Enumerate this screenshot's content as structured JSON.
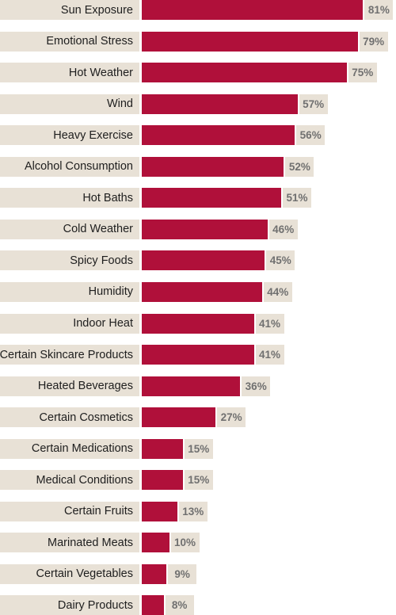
{
  "colors": {
    "bar": "#b0103a",
    "label_background": "#e8e1d6",
    "label_text": "#1e1e1e",
    "value_text": "#707070"
  },
  "chart_data": {
    "type": "bar",
    "orientation": "horizontal",
    "title": "",
    "xlabel": "",
    "ylabel": "",
    "xlim": [
      0,
      100
    ],
    "grid": false,
    "legend": "none",
    "value_suffix": "%",
    "categories": [
      "Sun Exposure",
      "Emotional Stress",
      "Hot Weather",
      "Wind",
      "Heavy Exercise",
      "Alcohol Consumption",
      "Hot Baths",
      "Cold Weather",
      "Spicy Foods",
      "Humidity",
      "Indoor Heat",
      "Certain Skincare Products",
      "Heated Beverages",
      "Certain Cosmetics",
      "Certain Medications",
      "Medical Conditions",
      "Certain Fruits",
      "Marinated Meats",
      "Certain Vegetables",
      "Dairy Products"
    ],
    "values": [
      81,
      79,
      75,
      57,
      56,
      52,
      51,
      46,
      45,
      44,
      41,
      41,
      36,
      27,
      15,
      15,
      13,
      10,
      9,
      8
    ],
    "value_labels": [
      "81%",
      "79%",
      "75%",
      "57%",
      "56%",
      "52%",
      "51%",
      "46%",
      "45%",
      "44%",
      "41%",
      "41%",
      "36%",
      "27%",
      "15%",
      "15%",
      "13%",
      "10%",
      "9%",
      "8%"
    ]
  }
}
